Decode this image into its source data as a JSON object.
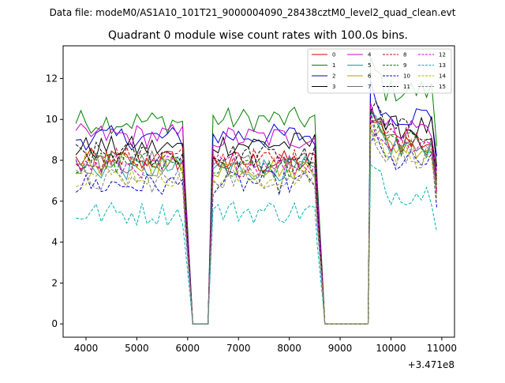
{
  "chart_data": {
    "type": "line",
    "suptitle": "Data file: modeM0/AS1A10_101T21_9000004090_28438cztM0_level2_quad_clean.evt",
    "title": "Quadrant 0 module wise count rates with 100.0s bins.",
    "xlabel": "",
    "ylabel": "",
    "x_offset_label": "+3.471e8",
    "xlim": [
      3550,
      11250
    ],
    "ylim": [
      -0.65,
      13.6
    ],
    "xticks": [
      4000,
      5000,
      6000,
      7000,
      8000,
      9000,
      10000,
      11000
    ],
    "yticks": [
      0,
      2,
      4,
      6,
      8,
      10,
      12
    ],
    "grid": false,
    "legend": {
      "position": "top-right",
      "columns": 4
    },
    "segments": [
      {
        "start": 3800,
        "end": 5900
      },
      {
        "start": 6500,
        "end": 8500
      },
      {
        "start": 9600,
        "end": 10800
      }
    ],
    "drop_x": [
      5950,
      6050,
      6100,
      6200,
      6300,
      6400,
      8550,
      8650,
      8700,
      8800,
      9000,
      9200,
      9400,
      9550
    ],
    "drop_factor": [
      0.7,
      0.25,
      0.0,
      0.0,
      0.0,
      0.0,
      0.7,
      0.25,
      0.0,
      0.0,
      0.0,
      0.0,
      0.0,
      0.0
    ],
    "x_end": 10900,
    "series": [
      {
        "name": "0",
        "color": "#cc0000",
        "dash": false,
        "levels": [
          8.0,
          7.9,
          8.9
        ],
        "end": 6.5
      },
      {
        "name": "1",
        "color": "#008000",
        "dash": false,
        "levels": [
          9.9,
          10.0,
          11.4
        ],
        "end": 8.7
      },
      {
        "name": "2",
        "color": "#0000cc",
        "dash": false,
        "levels": [
          9.1,
          9.2,
          10.2
        ],
        "end": 8.2
      },
      {
        "name": "3",
        "color": "#000000",
        "dash": false,
        "levels": [
          8.6,
          8.8,
          9.6
        ],
        "end": 7.7
      },
      {
        "name": "4",
        "color": "#cc00cc",
        "dash": false,
        "levels": [
          9.2,
          9.1,
          9.6
        ],
        "end": 7.5
      },
      {
        "name": "5",
        "color": "#17a398",
        "dash": false,
        "levels": [
          7.6,
          7.6,
          8.7
        ],
        "end": 7.0
      },
      {
        "name": "6",
        "color": "#b3a000",
        "dash": false,
        "levels": [
          7.8,
          7.7,
          8.7
        ],
        "end": 7.0
      },
      {
        "name": "7",
        "color": "#707070",
        "dash": false,
        "levels": [
          7.9,
          7.8,
          8.7
        ],
        "end": 6.8
      },
      {
        "name": "8",
        "color": "#cc0000",
        "dash": true,
        "levels": [
          8.1,
          8.0,
          9.2
        ],
        "end": 7.2
      },
      {
        "name": "9",
        "color": "#008000",
        "dash": true,
        "levels": [
          7.9,
          7.6,
          8.8
        ],
        "end": 6.6
      },
      {
        "name": "10",
        "color": "#0000cc",
        "dash": true,
        "levels": [
          6.8,
          6.9,
          7.9
        ],
        "end": 5.7
      },
      {
        "name": "11",
        "color": "#000000",
        "dash": true,
        "levels": [
          8.3,
          8.2,
          9.5
        ],
        "end": 7.1
      },
      {
        "name": "12",
        "color": "#cc00cc",
        "dash": true,
        "levels": [
          7.7,
          7.8,
          8.8
        ],
        "end": 6.4
      },
      {
        "name": "13",
        "color": "#00b3b3",
        "dash": true,
        "levels": [
          5.4,
          5.5,
          6.4
        ],
        "end": 4.5
      },
      {
        "name": "14",
        "color": "#b3b300",
        "dash": true,
        "levels": [
          7.3,
          7.1,
          8.3
        ],
        "end": 6.1
      },
      {
        "name": "15",
        "color": "#808080",
        "dash": true,
        "levels": [
          7.0,
          7.2,
          8.2
        ],
        "end": 6.2
      }
    ]
  }
}
